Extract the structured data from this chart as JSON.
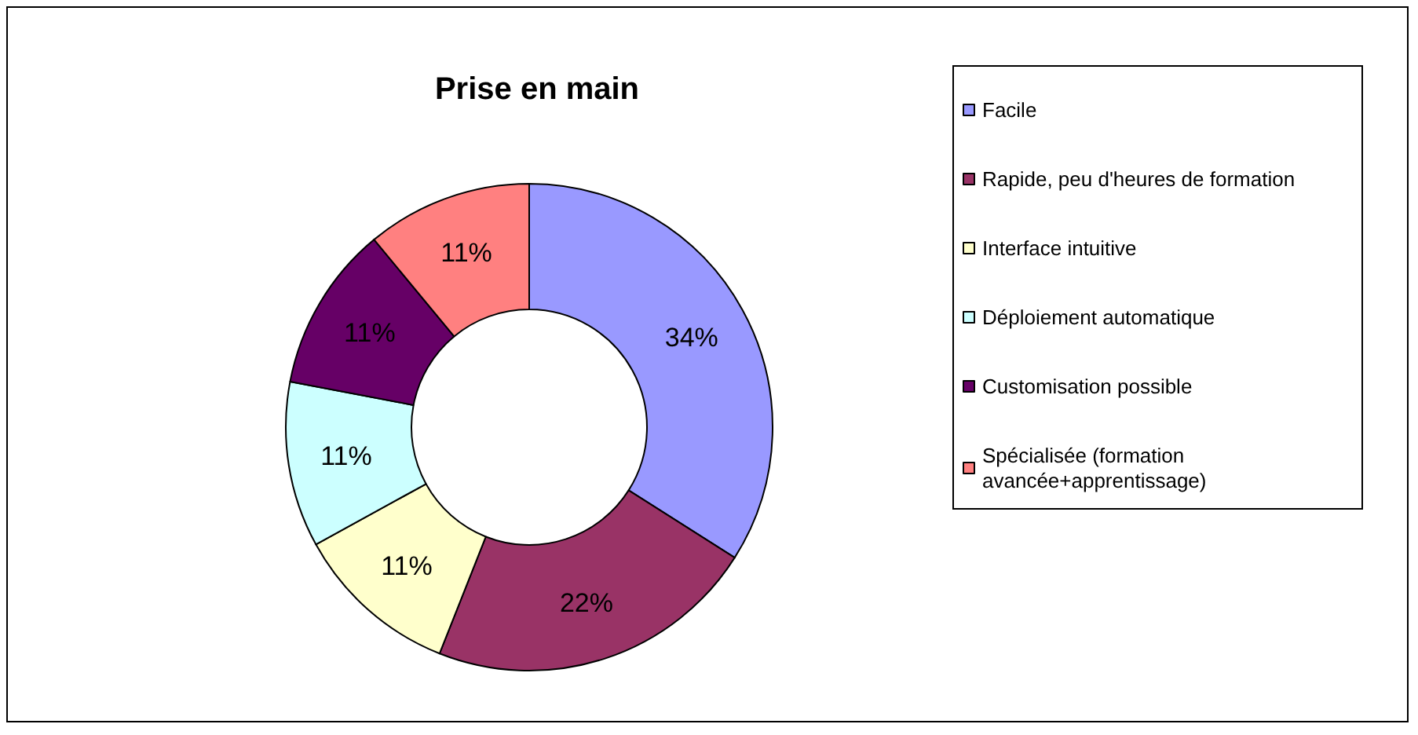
{
  "chart_data": {
    "type": "donut",
    "title": "Prise en main",
    "categories": [
      "Facile",
      "Rapide, peu d'heures de formation",
      "Interface intuitive",
      "Déploiement automatique",
      "Customisation possible",
      "Spécialisée (formation avancée+apprentissage)"
    ],
    "values": [
      34,
      22,
      11,
      11,
      11,
      11
    ],
    "colors": [
      "#9999ff",
      "#993366",
      "#ffffcc",
      "#ccffff",
      "#660066",
      "#ff8080"
    ],
    "value_labels": [
      "34%",
      "22%",
      "11%",
      "11%",
      "11%",
      "11%"
    ],
    "legend": "right"
  }
}
